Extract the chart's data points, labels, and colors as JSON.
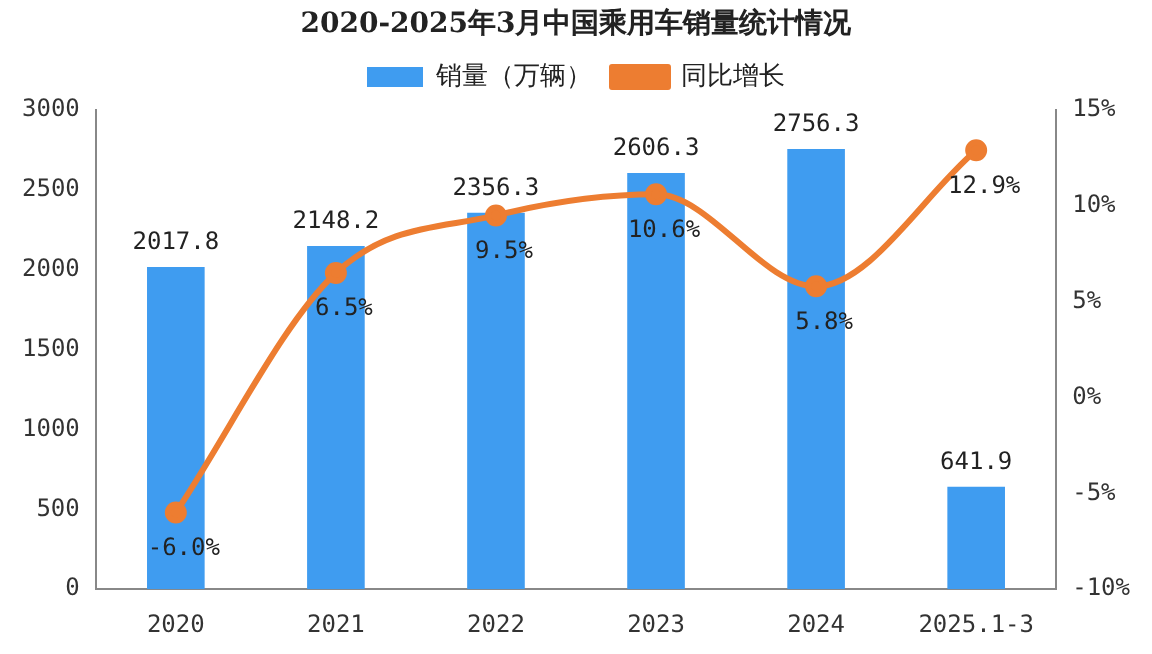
{
  "chart_data": {
    "type": "bar",
    "title": "2020-2025年3月中国乘用车销量统计情况",
    "categories": [
      "2020",
      "2021",
      "2022",
      "2023",
      "2024",
      "2025.1-3"
    ],
    "series": [
      {
        "name": "销量（万辆）",
        "color": "#3f9cf0",
        "values": [
          2017.8,
          2148.2,
          2356.3,
          2606.3,
          2756.3,
          641.9
        ],
        "value_labels": [
          "2017.8",
          "2148.2",
          "2356.3",
          "2606.3",
          "2756.3",
          "641.9"
        ]
      },
      {
        "name": "同比增长",
        "type": "line",
        "axis": "y2",
        "color": "#ed7d31",
        "values": [
          -6.0,
          6.5,
          9.5,
          10.6,
          5.8,
          12.9
        ],
        "value_labels": [
          "-6.0%",
          "6.5%",
          "9.5%",
          "10.6%",
          "5.8%",
          "12.9%"
        ]
      }
    ],
    "ylim": [
      0,
      3000
    ],
    "yticks": [
      0,
      500,
      1000,
      1500,
      2000,
      2500,
      3000
    ],
    "y2lim": [
      -10,
      15
    ],
    "y2ticks": [
      {
        "value": -10,
        "label": "-10%"
      },
      {
        "value": -5,
        "label": "-5%"
      },
      {
        "value": 0,
        "label": "0%"
      },
      {
        "value": 5,
        "label": "5%"
      },
      {
        "value": 10,
        "label": "10%"
      },
      {
        "value": 15,
        "label": "15%"
      }
    ],
    "legend": "top",
    "grid": false,
    "marker": "circle",
    "line_style": "solid"
  }
}
